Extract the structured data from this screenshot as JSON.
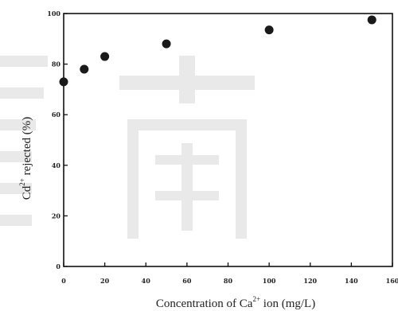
{
  "chart_data": {
    "type": "scatter",
    "title": "",
    "xlabel": {
      "prefix": "Concentration of Ca",
      "superscript": "2+",
      "suffix": " ion (mg/L)"
    },
    "ylabel": {
      "prefix": "Cd",
      "superscript": "2+",
      "suffix": " rejected (%)"
    },
    "xlim": [
      0,
      160
    ],
    "ylim": [
      0,
      100
    ],
    "xticks": [
      0,
      20,
      40,
      60,
      80,
      100,
      120,
      140,
      160
    ],
    "yticks": [
      0,
      20,
      40,
      60,
      80,
      100
    ],
    "grid": false,
    "marker": "filled-circle",
    "marker_color": "#1a1a1a",
    "series": [
      {
        "x": [
          0,
          10,
          20,
          50,
          100,
          150
        ],
        "y": [
          73,
          78,
          83,
          88,
          93.5,
          97.5
        ]
      }
    ]
  }
}
